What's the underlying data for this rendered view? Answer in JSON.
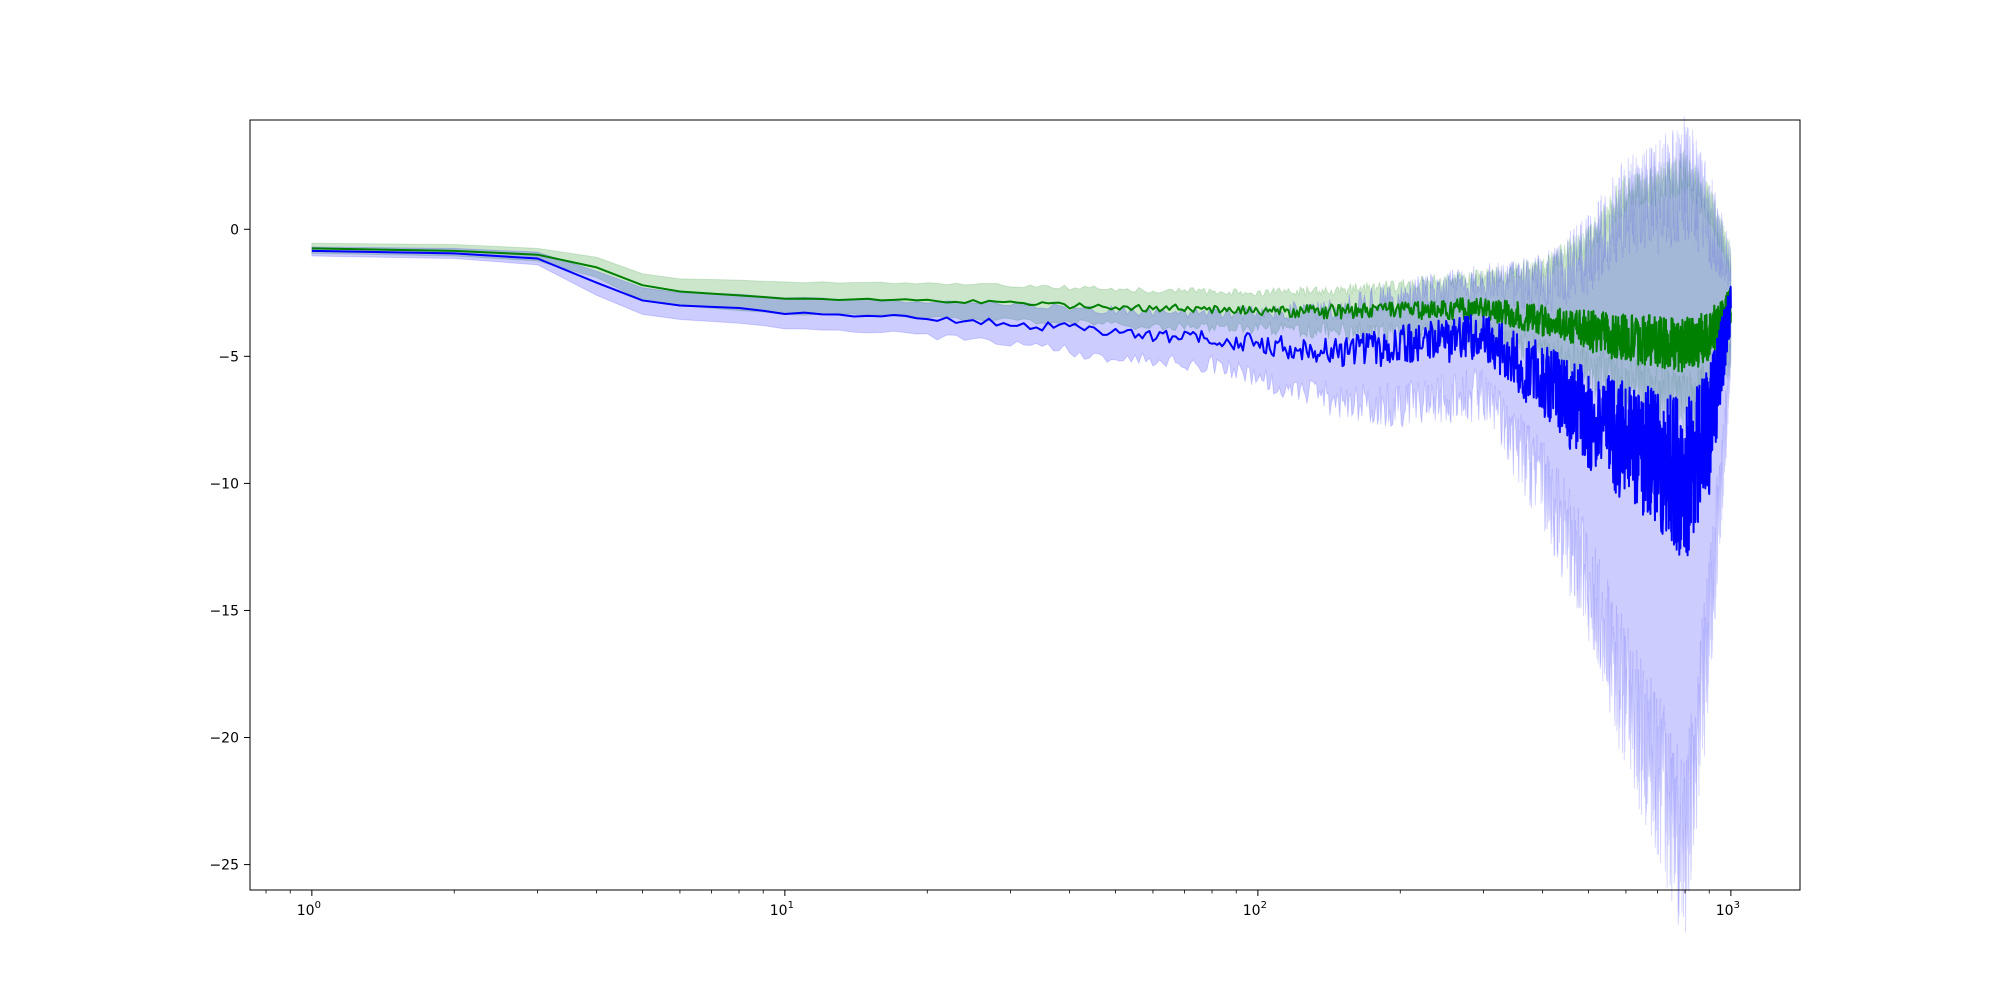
{
  "chart_data": {
    "type": "line",
    "title": "",
    "xlabel": "",
    "ylabel": "",
    "xscale": "log",
    "xlim": [
      0.74,
      1400
    ],
    "ylim": [
      -26,
      4.3
    ],
    "grid": false,
    "legend": "none",
    "x_ticks": [
      {
        "base": "10",
        "exp": "0",
        "value": 1
      },
      {
        "base": "10",
        "exp": "1",
        "value": 10
      },
      {
        "base": "10",
        "exp": "2",
        "value": 100
      },
      {
        "base": "10",
        "exp": "3",
        "value": 1000
      }
    ],
    "y_ticks": [
      {
        "label": "0",
        "value": 0
      },
      {
        "label": "−5",
        "value": -5
      },
      {
        "label": "−10",
        "value": -10
      },
      {
        "label": "−15",
        "value": -15
      },
      {
        "label": "−20",
        "value": -20
      },
      {
        "label": "−25",
        "value": -25
      }
    ],
    "series": [
      {
        "color": "#008000",
        "band_color": "#008000",
        "x": [
          1,
          2,
          3,
          4,
          5,
          6,
          8,
          10,
          15,
          20,
          30,
          40,
          60,
          80,
          100,
          150,
          200,
          300,
          400,
          500,
          600,
          700,
          800,
          900,
          1000
        ],
        "y": [
          -0.75,
          -0.85,
          -1.0,
          -1.5,
          -2.2,
          -2.45,
          -2.6,
          -2.7,
          -2.75,
          -2.8,
          -2.9,
          -3.0,
          -3.1,
          -3.15,
          -3.2,
          -3.25,
          -3.2,
          -3.1,
          -3.6,
          -4.0,
          -4.3,
          -4.4,
          -4.6,
          -4.2,
          -3.0
        ],
        "noise": [
          0,
          0,
          0,
          0,
          0,
          0,
          0,
          0.05,
          0.05,
          0.08,
          0.1,
          0.12,
          0.15,
          0.18,
          0.2,
          0.3,
          0.35,
          0.45,
          0.6,
          0.8,
          1.0,
          1.0,
          1.1,
          1.0,
          0.8
        ],
        "band_lower": [
          -0.95,
          -1.05,
          -1.25,
          -1.9,
          -2.8,
          -3.0,
          -3.2,
          -3.3,
          -3.4,
          -3.5,
          -3.6,
          -3.7,
          -3.8,
          -3.85,
          -3.9,
          -4.0,
          -4.1,
          -4.2,
          -4.9,
          -5.6,
          -6.2,
          -6.5,
          -6.8,
          -6.4,
          -4.8
        ],
        "band_upper": [
          -0.55,
          -0.6,
          -0.75,
          -1.1,
          -1.75,
          -1.95,
          -2.0,
          -2.1,
          -2.1,
          -2.15,
          -2.2,
          -2.3,
          -2.4,
          -2.45,
          -2.5,
          -2.4,
          -2.2,
          -1.9,
          -1.5,
          -0.5,
          1.5,
          1.7,
          2.3,
          1.0,
          -1.2
        ]
      },
      {
        "color": "#0000ff",
        "band_color": "#0000ff",
        "x": [
          1,
          2,
          3,
          4,
          5,
          6,
          8,
          10,
          15,
          20,
          30,
          40,
          60,
          80,
          100,
          150,
          200,
          300,
          400,
          500,
          600,
          700,
          800,
          900,
          1000
        ],
        "y": [
          -0.85,
          -0.95,
          -1.15,
          -2.1,
          -2.8,
          -3.0,
          -3.1,
          -3.3,
          -3.4,
          -3.5,
          -3.7,
          -3.9,
          -4.2,
          -4.3,
          -4.5,
          -4.8,
          -4.6,
          -4.2,
          -6.0,
          -7.5,
          -8.5,
          -9.0,
          -10.0,
          -8.0,
          -3.0
        ],
        "noise": [
          0,
          0,
          0,
          0,
          0,
          0,
          0,
          0.05,
          0.08,
          0.1,
          0.15,
          0.2,
          0.25,
          0.3,
          0.4,
          0.6,
          0.8,
          0.9,
          1.5,
          2.0,
          2.5,
          2.8,
          3.2,
          2.5,
          1.0
        ],
        "band_lower": [
          -1.05,
          -1.15,
          -1.4,
          -2.6,
          -3.35,
          -3.55,
          -3.7,
          -3.9,
          -4.0,
          -4.2,
          -4.5,
          -4.8,
          -5.2,
          -5.3,
          -5.8,
          -6.8,
          -6.9,
          -6.5,
          -10.0,
          -14.0,
          -18.5,
          -21.5,
          -24.5,
          -16.0,
          -5.0
        ],
        "band_upper": [
          -0.7,
          -0.75,
          -0.9,
          -1.65,
          -2.3,
          -2.5,
          -2.55,
          -2.7,
          -2.8,
          -2.85,
          -2.95,
          -3.1,
          -3.25,
          -3.35,
          -3.3,
          -3.1,
          -2.6,
          -2.0,
          -2.2,
          -1.0,
          1.0,
          1.2,
          2.0,
          0.5,
          -1.5
        ]
      }
    ]
  }
}
